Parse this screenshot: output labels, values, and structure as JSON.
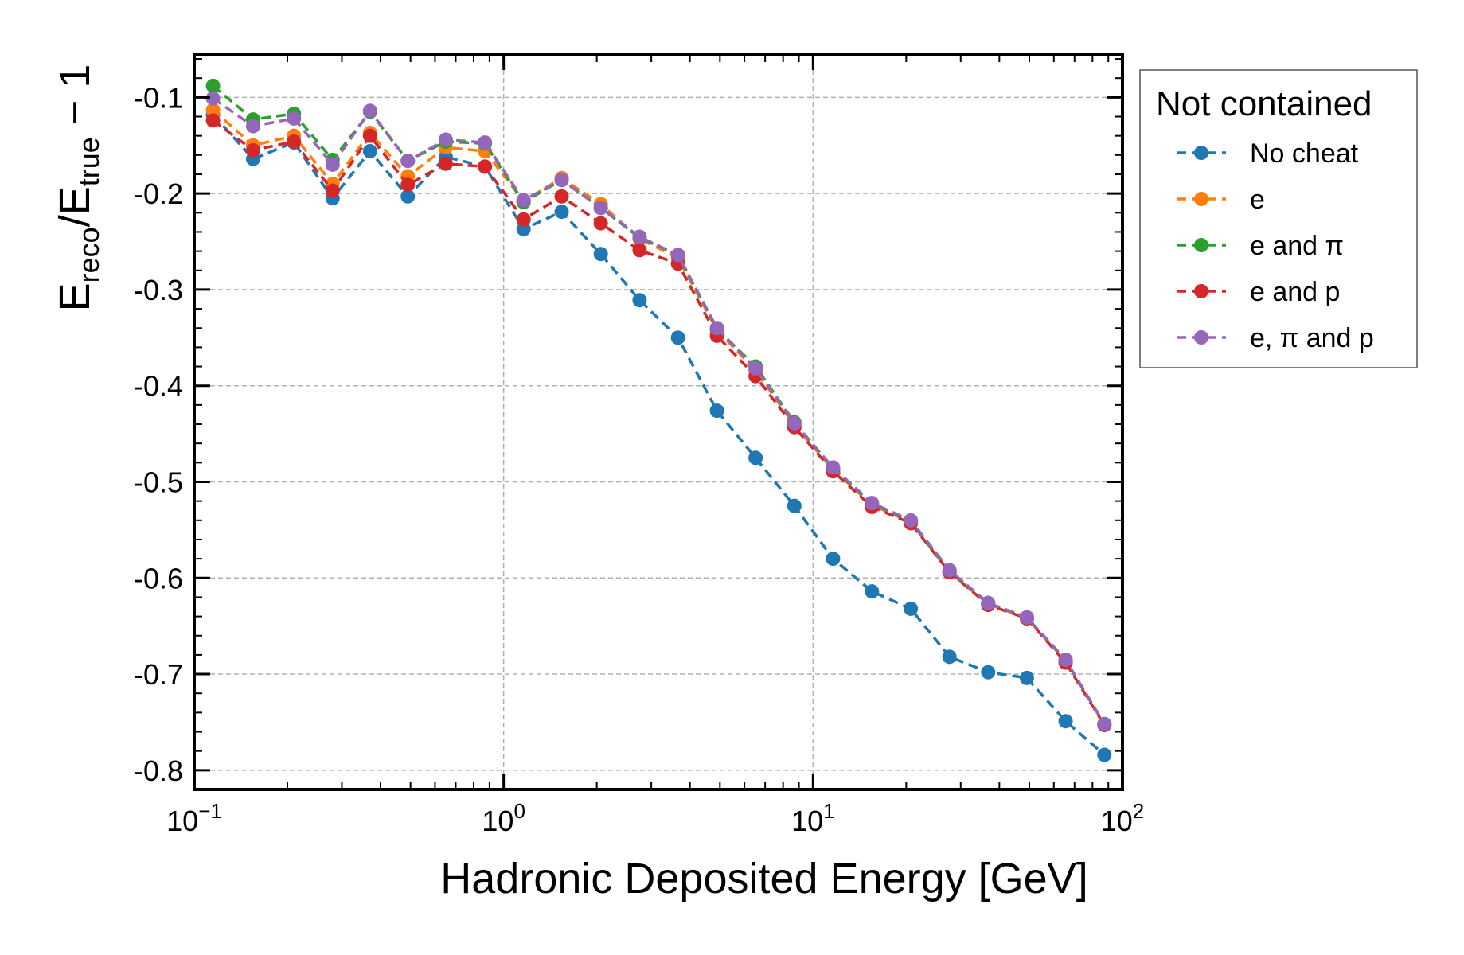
{
  "chart_data": {
    "type": "line",
    "xscale": "log",
    "xlim": [
      0.1,
      100
    ],
    "ylim": [
      -0.82,
      -0.055
    ],
    "grid": true,
    "xlabel": "Hadronic Deposited Energy [GeV]",
    "ylabel": {
      "base": "E",
      "sub1": "reco",
      "mid": "/E",
      "sub2": "true",
      "tail": " − 1"
    },
    "xticks": [
      {
        "value": 0.1,
        "base": "10",
        "exp": "−1"
      },
      {
        "value": 1,
        "base": "10",
        "exp": "0"
      },
      {
        "value": 10,
        "base": "10",
        "exp": "1"
      },
      {
        "value": 100,
        "base": "10",
        "exp": "2"
      }
    ],
    "yticks": [
      {
        "value": -0.1,
        "label": "-0.1"
      },
      {
        "value": -0.2,
        "label": "-0.2"
      },
      {
        "value": -0.3,
        "label": "-0.3"
      },
      {
        "value": -0.4,
        "label": "-0.4"
      },
      {
        "value": -0.5,
        "label": "-0.5"
      },
      {
        "value": -0.6,
        "label": "-0.6"
      },
      {
        "value": -0.7,
        "label": "-0.7"
      },
      {
        "value": -0.8,
        "label": "-0.8"
      }
    ],
    "legend": {
      "title": "Not contained",
      "position": "outside-top-right"
    },
    "x": [
      0.115,
      0.155,
      0.21,
      0.28,
      0.37,
      0.49,
      0.65,
      0.87,
      1.16,
      1.54,
      2.06,
      2.75,
      3.66,
      4.89,
      6.52,
      8.7,
      11.6,
      15.5,
      20.7,
      27.6,
      36.8,
      49.1,
      65.5,
      87.4
    ],
    "series": [
      {
        "name": "No cheat",
        "color": "#1f77b4",
        "values": [
          -0.118,
          -0.164,
          -0.147,
          -0.205,
          -0.156,
          -0.203,
          -0.162,
          -0.172,
          -0.237,
          -0.219,
          -0.263,
          -0.311,
          -0.35,
          -0.426,
          -0.475,
          -0.525,
          -0.58,
          -0.614,
          -0.632,
          -0.682,
          -0.698,
          -0.704,
          -0.749,
          -0.784
        ]
      },
      {
        "name": "e",
        "color": "#ff7f0e",
        "values": [
          -0.113,
          -0.15,
          -0.14,
          -0.19,
          -0.137,
          -0.182,
          -0.152,
          -0.156,
          -0.208,
          -0.184,
          -0.211,
          -0.247,
          -0.267,
          -0.342,
          -0.384,
          -0.441,
          -0.487,
          -0.524,
          -0.542,
          -0.594,
          -0.627,
          -0.642,
          -0.686,
          -0.752
        ]
      },
      {
        "name": "e and π",
        "color": "#2ca02c",
        "values": [
          -0.088,
          -0.123,
          -0.117,
          -0.165,
          -0.115,
          -0.166,
          -0.146,
          -0.148,
          -0.209,
          -0.186,
          -0.215,
          -0.246,
          -0.264,
          -0.341,
          -0.38,
          -0.438,
          -0.486,
          -0.523,
          -0.541,
          -0.593,
          -0.626,
          -0.641,
          -0.686,
          -0.752
        ]
      },
      {
        "name": "e and p",
        "color": "#d62728",
        "values": [
          -0.124,
          -0.155,
          -0.146,
          -0.197,
          -0.14,
          -0.191,
          -0.169,
          -0.172,
          -0.227,
          -0.203,
          -0.231,
          -0.259,
          -0.273,
          -0.348,
          -0.39,
          -0.443,
          -0.489,
          -0.526,
          -0.543,
          -0.594,
          -0.628,
          -0.642,
          -0.688,
          -0.753
        ]
      },
      {
        "name": "e, π and p",
        "color": "#9467bd",
        "values": [
          -0.101,
          -0.13,
          -0.122,
          -0.17,
          -0.114,
          -0.166,
          -0.144,
          -0.147,
          -0.207,
          -0.186,
          -0.215,
          -0.245,
          -0.264,
          -0.34,
          -0.382,
          -0.439,
          -0.485,
          -0.522,
          -0.54,
          -0.592,
          -0.626,
          -0.641,
          -0.685,
          -0.752
        ]
      }
    ]
  }
}
